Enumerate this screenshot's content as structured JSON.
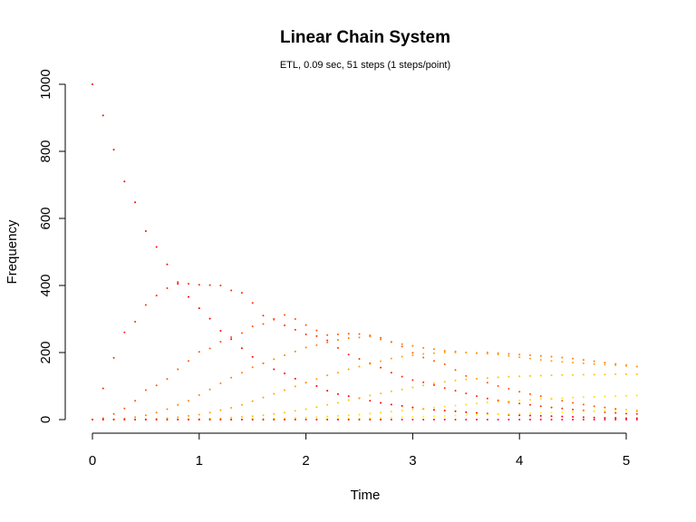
{
  "chart_data": {
    "type": "scatter",
    "title": "Linear Chain System",
    "subtitle": "ETL, 0.09 sec, 51 steps (1 steps/point)",
    "xlabel": "Time",
    "ylabel": "Frequency",
    "xlim": [
      0,
      5.1
    ],
    "ylim": [
      0,
      1000
    ],
    "xticks": [
      0,
      1,
      2,
      3,
      4,
      5
    ],
    "yticks": [
      0,
      200,
      400,
      600,
      800,
      1000
    ],
    "grid": false,
    "legend": "none",
    "x_step": 0.1,
    "series": [
      {
        "color": "#ff0000",
        "values": [
          1000,
          907,
          805,
          710,
          648,
          562,
          515,
          463,
          405,
          366,
          332,
          301,
          265,
          240,
          213,
          187,
          168,
          150,
          138,
          122,
          110,
          100,
          86,
          76,
          70,
          64,
          56,
          50,
          45,
          41,
          36,
          32,
          29,
          27,
          25,
          22,
          20,
          18,
          16,
          14,
          13,
          12,
          11,
          10,
          9,
          8,
          7,
          6,
          5,
          5,
          4,
          4
        ]
      },
      {
        "color": "#ff2a00",
        "values": [
          0,
          93,
          184,
          260,
          292,
          342,
          370,
          392,
          410,
          405,
          402,
          401,
          400,
          385,
          378,
          348,
          310,
          300,
          281,
          268,
          254,
          249,
          236,
          214,
          194,
          181,
          168,
          155,
          140,
          128,
          118,
          111,
          103,
          94,
          86,
          78,
          70,
          63,
          57,
          52,
          48,
          44,
          40,
          36,
          33,
          30,
          27,
          25,
          22,
          20,
          18,
          17
        ]
      },
      {
        "color": "#ff5500",
        "values": [
          0,
          4,
          17,
          33,
          56,
          88,
          102,
          121,
          150,
          175,
          202,
          212,
          232,
          246,
          258,
          278,
          285,
          298,
          312,
          300,
          282,
          266,
          252,
          254,
          256,
          255,
          251,
          244,
          231,
          218,
          199,
          185,
          175,
          165,
          148,
          130,
          122,
          110,
          100,
          92,
          83,
          76,
          70,
          62,
          56,
          50,
          45,
          40,
          36,
          32,
          29,
          26
        ]
      },
      {
        "color": "#ff7f00",
        "values": [
          0,
          0,
          1,
          3,
          7,
          13,
          21,
          31,
          44,
          56,
          73,
          90,
          108,
          125,
          140,
          156,
          168,
          180,
          192,
          203,
          215,
          222,
          230,
          238,
          243,
          245,
          248,
          239,
          232,
          225,
          220,
          214,
          210,
          205,
          203,
          200,
          198,
          200,
          198,
          196,
          194,
          192,
          190,
          188,
          185,
          182,
          178,
          174,
          170,
          166,
          162,
          158
        ]
      },
      {
        "color": "#ff9f00",
        "values": [
          0,
          0,
          0,
          0,
          0,
          1,
          2,
          4,
          7,
          11,
          15,
          21,
          28,
          35,
          44,
          55,
          66,
          77,
          88,
          99,
          110,
          121,
          132,
          140,
          150,
          158,
          166,
          174,
          182,
          188,
          192,
          196,
          198,
          200,
          200,
          200,
          199,
          197,
          194,
          190,
          186,
          182,
          178,
          175,
          172,
          170,
          168,
          166,
          164,
          162,
          160,
          158
        ]
      },
      {
        "color": "#ffbf00",
        "values": [
          0,
          0,
          0,
          0,
          0,
          0,
          0,
          0,
          1,
          1,
          2,
          3,
          4,
          6,
          8,
          10,
          13,
          17,
          21,
          26,
          31,
          37,
          44,
          50,
          58,
          65,
          72,
          78,
          84,
          90,
          96,
          102,
          108,
          113,
          117,
          120,
          122,
          124,
          126,
          128,
          129,
          130,
          131,
          132,
          133,
          133,
          134,
          134,
          134,
          135,
          135,
          135
        ]
      },
      {
        "color": "#ffdf00",
        "values": [
          0,
          0,
          0,
          0,
          0,
          0,
          0,
          0,
          0,
          0,
          0,
          0,
          1,
          1,
          1,
          2,
          2,
          3,
          4,
          5,
          6,
          7,
          9,
          11,
          13,
          15,
          18,
          21,
          24,
          27,
          30,
          33,
          36,
          39,
          42,
          45,
          48,
          51,
          53,
          55,
          57,
          59,
          61,
          63,
          64,
          66,
          67,
          68,
          69,
          70,
          71,
          72
        ]
      },
      {
        "color": "#ffff00",
        "values": [
          0,
          0,
          0,
          0,
          0,
          0,
          0,
          0,
          0,
          0,
          0,
          0,
          0,
          0,
          0,
          0,
          0,
          0,
          1,
          1,
          1,
          1,
          2,
          2,
          3,
          3,
          4,
          5,
          6,
          7,
          8,
          9,
          10,
          11,
          12,
          13,
          14,
          15,
          16,
          17,
          18,
          19,
          20,
          21,
          22,
          23,
          24,
          25,
          26,
          27,
          28,
          29
        ]
      },
      {
        "color": "#ff0040",
        "values": [
          0,
          0,
          0,
          0,
          0,
          0,
          0,
          0,
          0,
          0,
          0,
          0,
          0,
          0,
          0,
          0,
          0,
          0,
          0,
          0,
          0,
          0,
          0,
          0,
          0,
          0,
          0,
          0,
          0,
          0,
          0,
          0,
          0,
          0,
          0,
          0,
          0,
          0,
          0,
          0,
          0,
          0,
          0,
          0,
          0,
          0,
          0,
          0,
          0,
          0,
          0,
          0
        ]
      }
    ]
  }
}
